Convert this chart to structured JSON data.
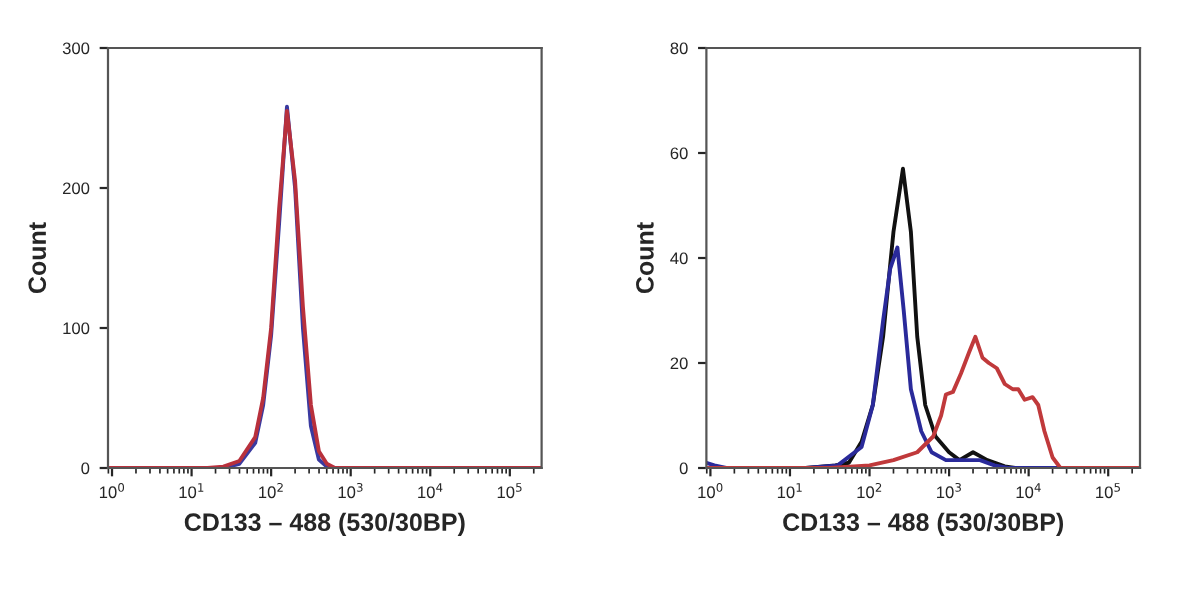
{
  "chart_data": [
    {
      "type": "line",
      "xlabel": "CD133 – 488 (530/30BP)",
      "ylabel": "Count",
      "log": "x",
      "grid": false,
      "legend": false,
      "xlim": [
        0.89,
        251000
      ],
      "ylim": [
        0,
        300
      ],
      "xticks": [
        {
          "value": 1,
          "label": "10$^{0}$"
        },
        {
          "value": 10,
          "label": "10$^{1}$"
        },
        {
          "value": 100,
          "label": "10$^{2}$"
        },
        {
          "value": 1000,
          "label": "10$^{3}$"
        },
        {
          "value": 10000,
          "label": "10$^{4}$"
        },
        {
          "value": 100000,
          "label": "10$^{5}$"
        }
      ],
      "yticks": [
        0,
        100,
        200,
        300
      ],
      "series": [
        {
          "color": "#3a3aa0",
          "x": [
            0.89,
            15.8,
            25.1,
            39.8,
            63.1,
            79.4,
            100,
            126,
            158,
            200,
            251,
            316,
            398,
            501,
            631,
            251000
          ],
          "values": [
            0,
            0,
            0,
            3,
            18,
            45,
            95,
            175,
            258,
            200,
            100,
            30,
            6,
            1,
            0,
            0
          ]
        },
        {
          "color": "#b8303c",
          "x": [
            0.89,
            15.8,
            25.1,
            39.8,
            63.1,
            79.4,
            100,
            126,
            158,
            200,
            251,
            316,
            398,
            501,
            631,
            251000
          ],
          "values": [
            0,
            0,
            1,
            5,
            22,
            50,
            100,
            185,
            255,
            205,
            115,
            45,
            12,
            3,
            0,
            0
          ]
        }
      ]
    },
    {
      "type": "line",
      "xlabel": "CD133 – 488 (530/30BP)",
      "ylabel": "Count",
      "log": "x",
      "grid": false,
      "legend": false,
      "xlim": [
        0.89,
        251000
      ],
      "ylim": [
        0,
        80
      ],
      "xticks": [
        {
          "value": 1,
          "label": "10$^{0}$"
        },
        {
          "value": 10,
          "label": "10$^{1}$"
        },
        {
          "value": 100,
          "label": "10$^{2}$"
        },
        {
          "value": 1000,
          "label": "10$^{3}$"
        },
        {
          "value": 10000,
          "label": "10$^{4}$"
        },
        {
          "value": 100000,
          "label": "10$^{5}$"
        }
      ],
      "yticks": [
        0,
        20,
        40,
        60,
        80
      ],
      "series": [
        {
          "color": "#111111",
          "x": [
            0.89,
            15.8,
            37.2,
            55,
            79.4,
            110,
            148,
            200,
            263,
            331,
            398,
            501,
            676,
            1000,
            1350,
            2000,
            3020,
            5010,
            6760,
            251000
          ],
          "values": [
            0,
            0,
            0.5,
            1,
            5,
            12,
            25,
            45,
            57,
            45,
            25,
            12,
            6,
            3,
            1.5,
            3,
            1.5,
            0.3,
            0,
            0
          ]
        },
        {
          "color": "#2a2a9a",
          "x": [
            0.89,
            1.12,
            1.58,
            15.8,
            39.8,
            79.4,
            110,
            148,
            182,
            224,
            269,
            331,
            447,
            603,
            912,
            1660,
            2450,
            3720,
            5500,
            251000
          ],
          "values": [
            1,
            0.5,
            0,
            0,
            0.5,
            4,
            12,
            28,
            38,
            42,
            30,
            15,
            7,
            3,
            1.5,
            1.5,
            1.5,
            0.5,
            0,
            0
          ]
        },
        {
          "color": "#c0393b",
          "x": [
            0.89,
            31.6,
            100,
            200,
            398,
            631,
            794,
            912,
            1120,
            1410,
            1780,
            2140,
            2630,
            3160,
            3980,
            5010,
            6310,
            7410,
            8910,
            11200,
            13200,
            15800,
            20000,
            25100,
            251000
          ],
          "values": [
            0,
            0,
            0.5,
            1.5,
            3,
            6,
            10,
            14,
            14.5,
            18,
            22,
            25,
            21,
            20,
            19,
            16,
            15,
            15,
            13,
            13.5,
            12,
            7,
            2,
            0,
            0
          ]
        }
      ]
    }
  ]
}
